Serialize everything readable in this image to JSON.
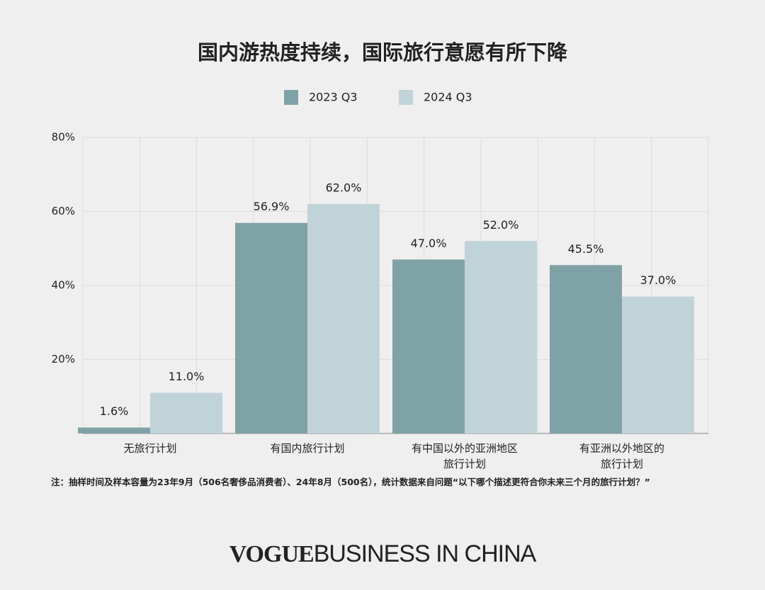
{
  "chart_data": {
    "type": "bar",
    "title": "国内游热度持续，国际旅行意愿有所下降",
    "categories": [
      "无旅行计划",
      "有国内旅行计划",
      "有中国以外的亚洲地区\n旅行计划",
      "有亚洲以外地区的\n旅行计划"
    ],
    "series": [
      {
        "name": "2023 Q3",
        "color": "#7fa2a7",
        "values": [
          1.6,
          56.9,
          47.0,
          45.5
        ],
        "value_labels": [
          "1.6%",
          "56.9%",
          "47.0%",
          "45.5%"
        ]
      },
      {
        "name": "2024 Q3",
        "color": "#c0d3d8",
        "values": [
          11.0,
          62.0,
          52.0,
          37.0
        ],
        "value_labels": [
          "11.0%",
          "62.0%",
          "52.0%",
          "37.0%"
        ]
      }
    ],
    "ylim": [
      0,
      80
    ],
    "yticks": [
      {
        "value": 20,
        "label": "20%"
      },
      {
        "value": 40,
        "label": "40%"
      },
      {
        "value": 60,
        "label": "60%"
      },
      {
        "value": 80,
        "label": "80%"
      }
    ],
    "grid": true,
    "note": "注：抽样时间及样本容量为23年9月（506名奢侈品消费者）、24年8月（500名），统计数据来自问题“以下哪个描述更符合你未来三个月的旅行计划？”",
    "brand": "VOGUE",
    "brand_sub": "BUSINESS IN CHINA"
  }
}
